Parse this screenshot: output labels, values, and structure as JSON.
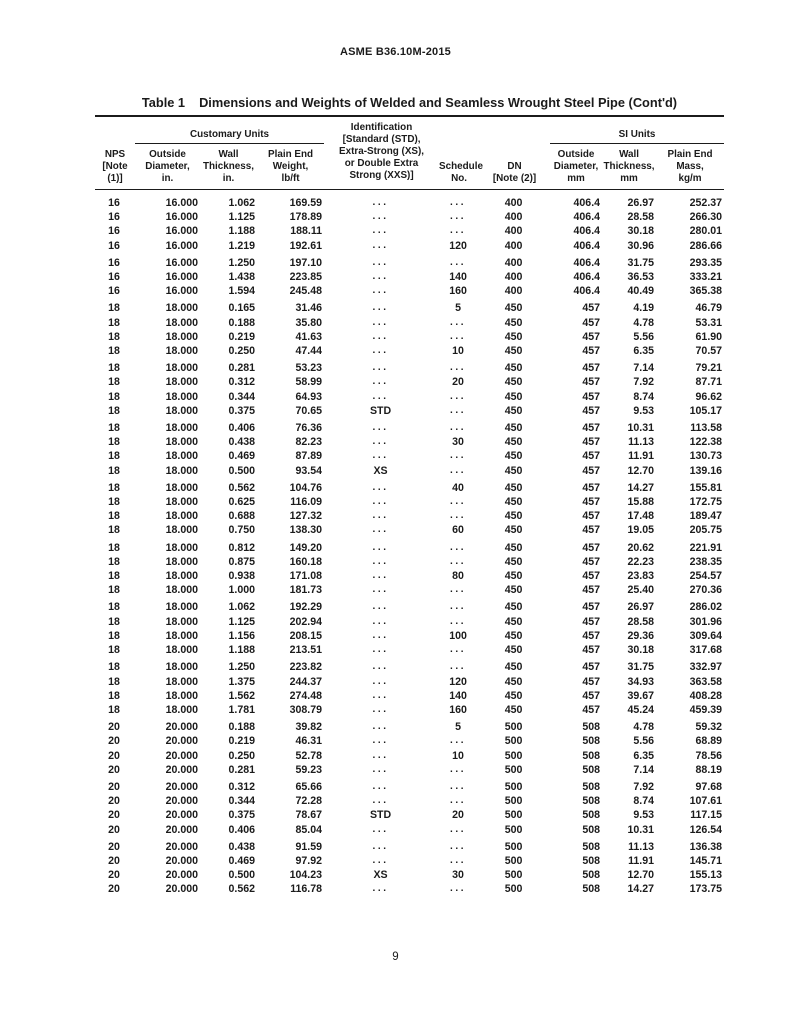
{
  "page": {
    "doc_header": "ASME B36.10M-2015",
    "page_number": "9"
  },
  "table": {
    "title_label": "Table 1",
    "title": "Dimensions and Weights of Welded and Seamless Wrought Steel Pipe (Cont'd)",
    "spanners": {
      "customary": "Customary Units",
      "si": "SI Units"
    },
    "headers": [
      "NPS\n[Note (1)]",
      "Outside\nDiameter,\nin.",
      "Wall\nThickness,\nin.",
      "Plain End\nWeight,\nlb/ft",
      "Identification\n[Standard (STD),\nExtra-Strong (XS),\nor Double Extra\nStrong (XXS)]",
      "Schedule\nNo.",
      "DN\n[Note (2)]",
      "Outside\nDiameter,\nmm",
      "Wall\nThickness,\nmm",
      "Plain End\nMass,\nkg/m"
    ],
    "groups": [
      [
        [
          "16",
          "16.000",
          "1.062",
          "169.59",
          "...",
          "...",
          "400",
          "406.4",
          "26.97",
          "252.37"
        ],
        [
          "16",
          "16.000",
          "1.125",
          "178.89",
          "...",
          "...",
          "400",
          "406.4",
          "28.58",
          "266.30"
        ],
        [
          "16",
          "16.000",
          "1.188",
          "188.11",
          "...",
          "...",
          "400",
          "406.4",
          "30.18",
          "280.01"
        ],
        [
          "16",
          "16.000",
          "1.219",
          "192.61",
          "...",
          "120",
          "400",
          "406.4",
          "30.96",
          "286.66"
        ]
      ],
      [
        [
          "16",
          "16.000",
          "1.250",
          "197.10",
          "...",
          "...",
          "400",
          "406.4",
          "31.75",
          "293.35"
        ],
        [
          "16",
          "16.000",
          "1.438",
          "223.85",
          "...",
          "140",
          "400",
          "406.4",
          "36.53",
          "333.21"
        ],
        [
          "16",
          "16.000",
          "1.594",
          "245.48",
          "...",
          "160",
          "400",
          "406.4",
          "40.49",
          "365.38"
        ]
      ],
      [
        [
          "18",
          "18.000",
          "0.165",
          "31.46",
          "...",
          "5",
          "450",
          "457",
          "4.19",
          "46.79"
        ],
        [
          "18",
          "18.000",
          "0.188",
          "35.80",
          "...",
          "...",
          "450",
          "457",
          "4.78",
          "53.31"
        ],
        [
          "18",
          "18.000",
          "0.219",
          "41.63",
          "...",
          "...",
          "450",
          "457",
          "5.56",
          "61.90"
        ],
        [
          "18",
          "18.000",
          "0.250",
          "47.44",
          "...",
          "10",
          "450",
          "457",
          "6.35",
          "70.57"
        ]
      ],
      [
        [
          "18",
          "18.000",
          "0.281",
          "53.23",
          "...",
          "...",
          "450",
          "457",
          "7.14",
          "79.21"
        ],
        [
          "18",
          "18.000",
          "0.312",
          "58.99",
          "...",
          "20",
          "450",
          "457",
          "7.92",
          "87.71"
        ],
        [
          "18",
          "18.000",
          "0.344",
          "64.93",
          "...",
          "...",
          "450",
          "457",
          "8.74",
          "96.62"
        ],
        [
          "18",
          "18.000",
          "0.375",
          "70.65",
          "STD",
          "...",
          "450",
          "457",
          "9.53",
          "105.17"
        ]
      ],
      [
        [
          "18",
          "18.000",
          "0.406",
          "76.36",
          "...",
          "...",
          "450",
          "457",
          "10.31",
          "113.58"
        ],
        [
          "18",
          "18.000",
          "0.438",
          "82.23",
          "...",
          "30",
          "450",
          "457",
          "11.13",
          "122.38"
        ],
        [
          "18",
          "18.000",
          "0.469",
          "87.89",
          "...",
          "...",
          "450",
          "457",
          "11.91",
          "130.73"
        ],
        [
          "18",
          "18.000",
          "0.500",
          "93.54",
          "XS",
          "...",
          "450",
          "457",
          "12.70",
          "139.16"
        ]
      ],
      [
        [
          "18",
          "18.000",
          "0.562",
          "104.76",
          "...",
          "40",
          "450",
          "457",
          "14.27",
          "155.81"
        ],
        [
          "18",
          "18.000",
          "0.625",
          "116.09",
          "...",
          "...",
          "450",
          "457",
          "15.88",
          "172.75"
        ],
        [
          "18",
          "18.000",
          "0.688",
          "127.32",
          "...",
          "...",
          "450",
          "457",
          "17.48",
          "189.47"
        ],
        [
          "18",
          "18.000",
          "0.750",
          "138.30",
          "...",
          "60",
          "450",
          "457",
          "19.05",
          "205.75"
        ]
      ],
      [
        [
          "18",
          "18.000",
          "0.812",
          "149.20",
          "...",
          "...",
          "450",
          "457",
          "20.62",
          "221.91"
        ],
        [
          "18",
          "18.000",
          "0.875",
          "160.18",
          "...",
          "...",
          "450",
          "457",
          "22.23",
          "238.35"
        ],
        [
          "18",
          "18.000",
          "0.938",
          "171.08",
          "...",
          "80",
          "450",
          "457",
          "23.83",
          "254.57"
        ],
        [
          "18",
          "18.000",
          "1.000",
          "181.73",
          "...",
          "...",
          "450",
          "457",
          "25.40",
          "270.36"
        ]
      ],
      [
        [
          "18",
          "18.000",
          "1.062",
          "192.29",
          "...",
          "...",
          "450",
          "457",
          "26.97",
          "286.02"
        ],
        [
          "18",
          "18.000",
          "1.125",
          "202.94",
          "...",
          "...",
          "450",
          "457",
          "28.58",
          "301.96"
        ],
        [
          "18",
          "18.000",
          "1.156",
          "208.15",
          "...",
          "100",
          "450",
          "457",
          "29.36",
          "309.64"
        ],
        [
          "18",
          "18.000",
          "1.188",
          "213.51",
          "...",
          "...",
          "450",
          "457",
          "30.18",
          "317.68"
        ]
      ],
      [
        [
          "18",
          "18.000",
          "1.250",
          "223.82",
          "...",
          "...",
          "450",
          "457",
          "31.75",
          "332.97"
        ],
        [
          "18",
          "18.000",
          "1.375",
          "244.37",
          "...",
          "120",
          "450",
          "457",
          "34.93",
          "363.58"
        ],
        [
          "18",
          "18.000",
          "1.562",
          "274.48",
          "...",
          "140",
          "450",
          "457",
          "39.67",
          "408.28"
        ],
        [
          "18",
          "18.000",
          "1.781",
          "308.79",
          "...",
          "160",
          "450",
          "457",
          "45.24",
          "459.39"
        ]
      ],
      [
        [
          "20",
          "20.000",
          "0.188",
          "39.82",
          "...",
          "5",
          "500",
          "508",
          "4.78",
          "59.32"
        ],
        [
          "20",
          "20.000",
          "0.219",
          "46.31",
          "...",
          "...",
          "500",
          "508",
          "5.56",
          "68.89"
        ],
        [
          "20",
          "20.000",
          "0.250",
          "52.78",
          "...",
          "10",
          "500",
          "508",
          "6.35",
          "78.56"
        ],
        [
          "20",
          "20.000",
          "0.281",
          "59.23",
          "...",
          "...",
          "500",
          "508",
          "7.14",
          "88.19"
        ]
      ],
      [
        [
          "20",
          "20.000",
          "0.312",
          "65.66",
          "...",
          "...",
          "500",
          "508",
          "7.92",
          "97.68"
        ],
        [
          "20",
          "20.000",
          "0.344",
          "72.28",
          "...",
          "...",
          "500",
          "508",
          "8.74",
          "107.61"
        ],
        [
          "20",
          "20.000",
          "0.375",
          "78.67",
          "STD",
          "20",
          "500",
          "508",
          "9.53",
          "117.15"
        ],
        [
          "20",
          "20.000",
          "0.406",
          "85.04",
          "...",
          "...",
          "500",
          "508",
          "10.31",
          "126.54"
        ]
      ],
      [
        [
          "20",
          "20.000",
          "0.438",
          "91.59",
          "...",
          "...",
          "500",
          "508",
          "11.13",
          "136.38"
        ],
        [
          "20",
          "20.000",
          "0.469",
          "97.92",
          "...",
          "...",
          "500",
          "508",
          "11.91",
          "145.71"
        ],
        [
          "20",
          "20.000",
          "0.500",
          "104.23",
          "XS",
          "30",
          "500",
          "508",
          "12.70",
          "155.13"
        ],
        [
          "20",
          "20.000",
          "0.562",
          "116.78",
          "...",
          "...",
          "500",
          "508",
          "14.27",
          "173.75"
        ]
      ]
    ]
  }
}
